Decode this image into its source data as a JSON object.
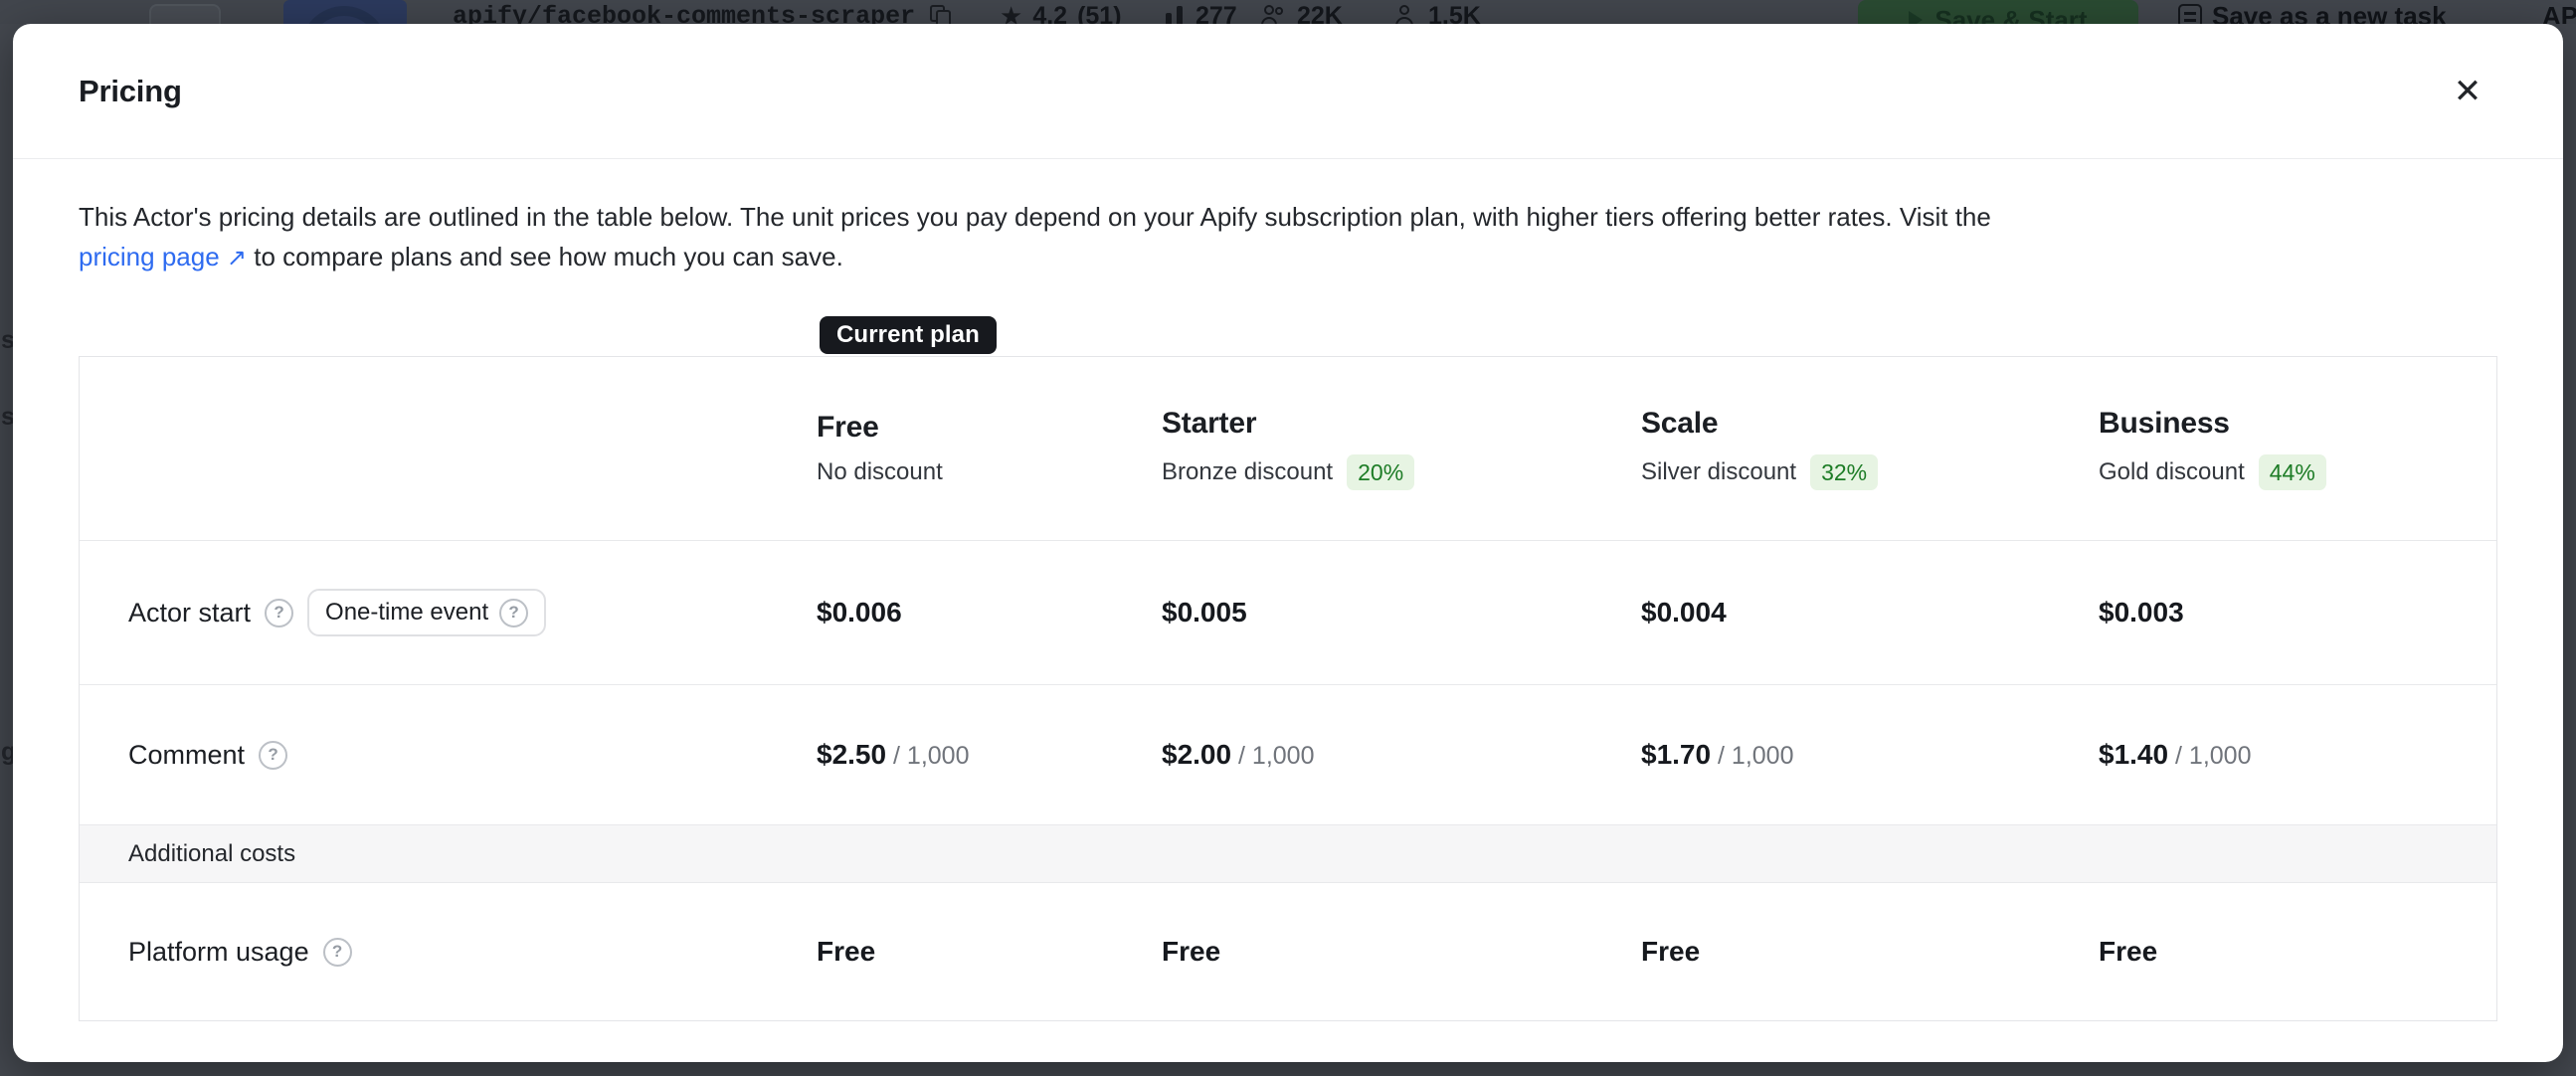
{
  "icons": {
    "close": "✕",
    "help": "?",
    "external_link": "↗",
    "star": "★"
  },
  "colors": {
    "backdrop": "#44484f",
    "modal_bg": "#ffffff",
    "link_blue": "#2e6bf0",
    "discount_text": "#1d7c26",
    "discount_bg": "#e7f4e3",
    "current_plan_bg": "#17191e",
    "table_border": "#e4e5e8",
    "section_bg": "#f6f6f7",
    "background_green_button": "#2a4b32"
  },
  "background": {
    "actor_name": "apify/facebook-comments-scraper",
    "rating": "4.2",
    "rating_count": "(51)",
    "runs": "277",
    "users": "22K",
    "monthly_users": "1.5K",
    "save_start_button": "Save & Start",
    "save_task_button": "Save as a new task",
    "api_button_partial": "AP",
    "left_edge_fragments": [
      "s",
      "s",
      "g"
    ]
  },
  "modal": {
    "title": "Pricing",
    "description": {
      "line1": "This Actor's pricing details are outlined in the table below. The unit prices you pay depend on your Apify subscription plan, with higher tiers offering better rates. Visit the",
      "link_text": "pricing page",
      "line2_after_link": "to compare plans and see how much you can save."
    },
    "current_plan_badge": "Current plan",
    "table": {
      "plans": [
        {
          "name": "Free",
          "subtitle": "No discount",
          "discount": null
        },
        {
          "name": "Starter",
          "subtitle": "Bronze discount",
          "discount": "20%"
        },
        {
          "name": "Scale",
          "subtitle": "Silver discount",
          "discount": "32%"
        },
        {
          "name": "Business",
          "subtitle": "Gold discount",
          "discount": "44%"
        }
      ],
      "rows": [
        {
          "label": "Actor start",
          "badge": "One-time event",
          "unit": null,
          "values": [
            "$0.006",
            "$0.005",
            "$0.004",
            "$0.003"
          ]
        },
        {
          "label": "Comment",
          "badge": null,
          "unit": "/ 1,000",
          "values": [
            "$2.50",
            "$2.00",
            "$1.70",
            "$1.40"
          ]
        }
      ],
      "section_header": "Additional costs",
      "section_rows": [
        {
          "label": "Platform usage",
          "values": [
            "Free",
            "Free",
            "Free",
            "Free"
          ]
        }
      ]
    }
  }
}
